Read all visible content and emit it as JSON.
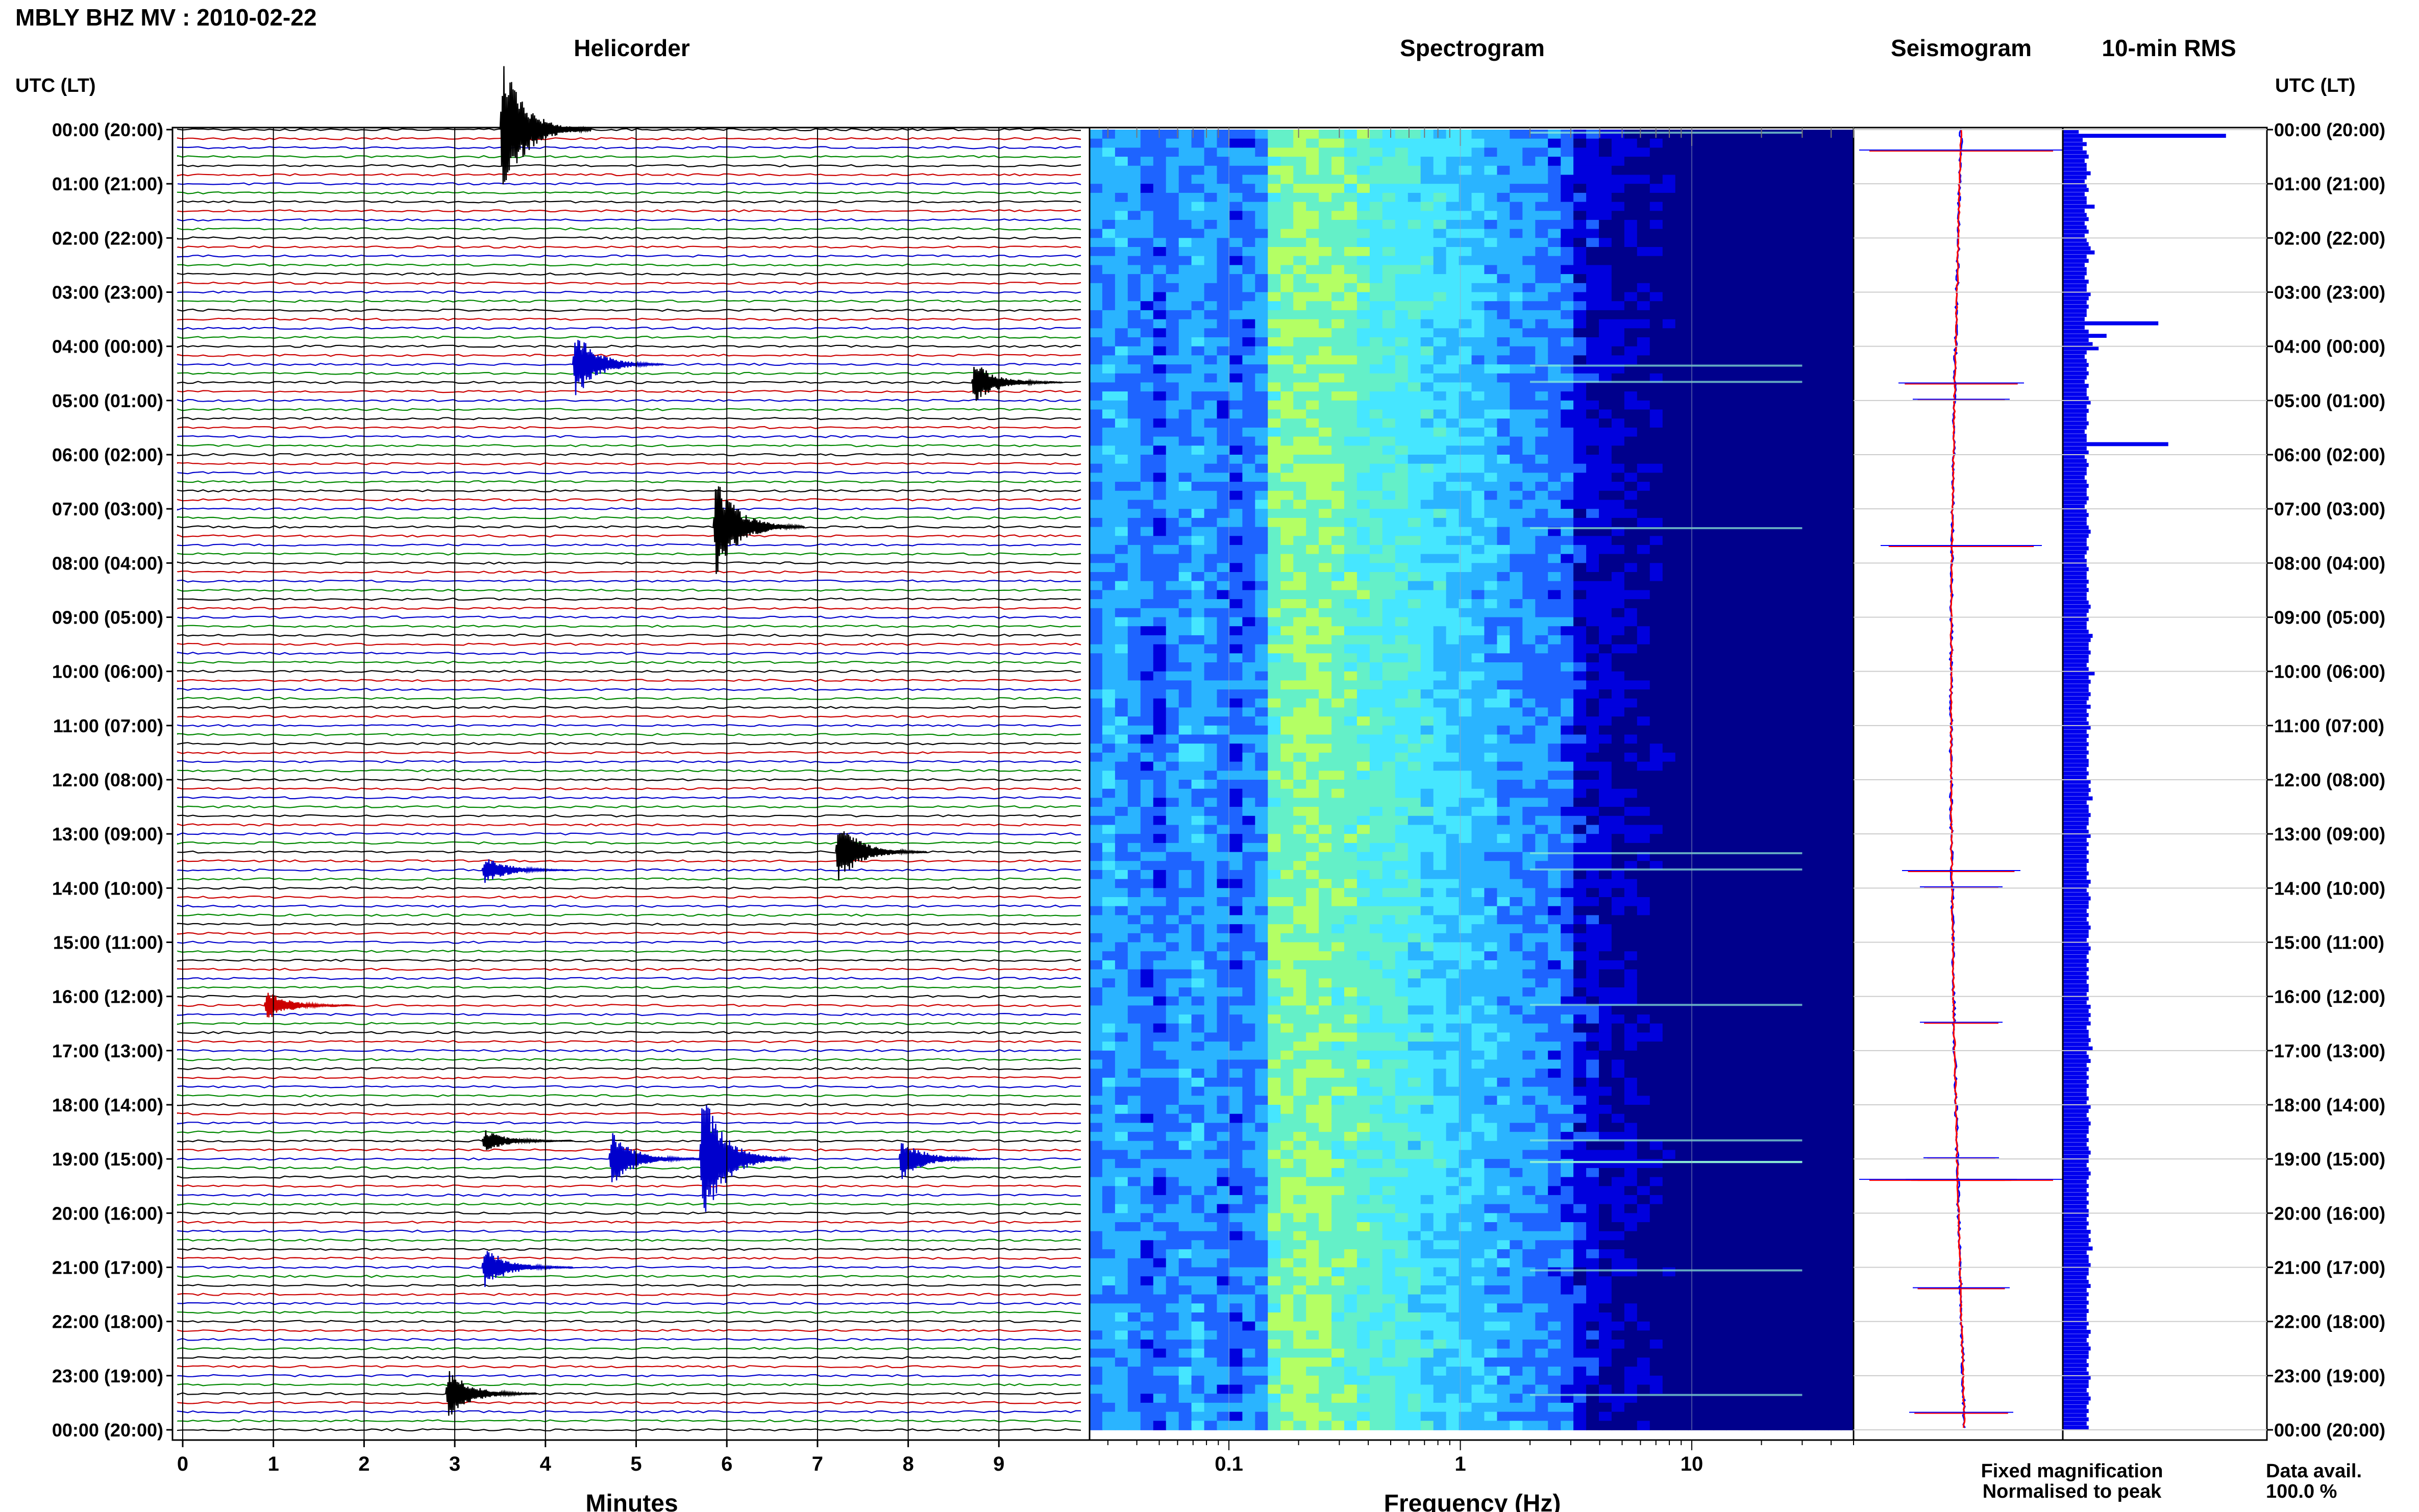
{
  "figure_title": "MBLY BHZ MV : 2010-02-22",
  "chart_data": [
    {
      "type": "line",
      "panel": "helicorder",
      "title": "Helicorder",
      "xlabel": "Minutes",
      "xlim": [
        0,
        10
      ],
      "xticks": [
        "0",
        "1",
        "2",
        "3",
        "4",
        "5",
        "6",
        "7",
        "8",
        "9"
      ],
      "time_label": "UTC (LT)",
      "time_ticks_left": [
        "00:00 (20:00)",
        "01:00 (21:00)",
        "02:00 (22:00)",
        "03:00 (23:00)",
        "04:00 (00:00)",
        "05:00 (01:00)",
        "06:00 (02:00)",
        "07:00 (03:00)",
        "08:00 (04:00)",
        "09:00 (05:00)",
        "10:00 (06:00)",
        "11:00 (07:00)",
        "12:00 (08:00)",
        "13:00 (09:00)",
        "14:00 (10:00)",
        "15:00 (11:00)",
        "16:00 (12:00)",
        "17:00 (13:00)",
        "18:00 (14:00)",
        "19:00 (15:00)",
        "20:00 (16:00)",
        "21:00 (17:00)",
        "22:00 (18:00)",
        "23:00 (19:00)",
        "00:00 (20:00)"
      ],
      "trace_colors": [
        "#000000",
        "#cc0000",
        "#0000cc",
        "#008800"
      ],
      "rows_per_hour": 6,
      "events": [
        {
          "hour": 0.0,
          "minute": 3.5,
          "amp": 1.0
        },
        {
          "hour": 4.3,
          "minute": 4.3,
          "amp": 0.45
        },
        {
          "hour": 4.6,
          "minute": 8.7,
          "amp": 0.25
        },
        {
          "hour": 7.3,
          "minute": 5.85,
          "amp": 0.7
        },
        {
          "hour": 13.3,
          "minute": 7.2,
          "amp": 0.4
        },
        {
          "hour": 13.6,
          "minute": 3.3,
          "amp": 0.15
        },
        {
          "hour": 16.1,
          "minute": 0.9,
          "amp": 0.15
        },
        {
          "hour": 18.6,
          "minute": 3.3,
          "amp": 0.1
        },
        {
          "hour": 19.0,
          "minute": 5.7,
          "amp": 1.0
        },
        {
          "hour": 19.0,
          "minute": 4.7,
          "amp": 0.35
        },
        {
          "hour": 19.0,
          "minute": 7.9,
          "amp": 0.25
        },
        {
          "hour": 21.0,
          "minute": 3.3,
          "amp": 0.25
        },
        {
          "hour": 23.3,
          "minute": 2.9,
          "amp": 0.3
        }
      ]
    },
    {
      "type": "heatmap",
      "panel": "spectrogram",
      "title": "Spectrogram",
      "xlabel": "Frequency (Hz)",
      "xscale": "log",
      "xlim": [
        0.025,
        50
      ],
      "xticks": [
        {
          "label": "0.1",
          "value": 0.1
        },
        {
          "label": "1",
          "value": 1
        },
        {
          "label": "10",
          "value": 10
        }
      ],
      "colormap": [
        "#00008c",
        "#0000dd",
        "#1e64ff",
        "#2ab4ff",
        "#46e6ff",
        "#64f0c8",
        "#b4ff64"
      ]
    },
    {
      "type": "line",
      "panel": "seismogram",
      "title": "Seismogram",
      "series": [
        {
          "name": "Fixed magnification",
          "color": "#0000ff"
        },
        {
          "name": "Normalised to peak",
          "color": "#ff0000"
        }
      ]
    },
    {
      "type": "bar",
      "panel": "rms",
      "title": "10-min RMS",
      "orientation": "horizontal",
      "color": "#0000ee",
      "time_label": "UTC (LT)",
      "time_ticks_right": [
        "00:00 (20:00)",
        "01:00 (21:00)",
        "02:00 (22:00)",
        "03:00 (23:00)",
        "04:00 (00:00)",
        "05:00 (01:00)",
        "06:00 (02:00)",
        "07:00 (03:00)",
        "08:00 (04:00)",
        "09:00 (05:00)",
        "10:00 (06:00)",
        "11:00 (07:00)",
        "12:00 (08:00)",
        "13:00 (09:00)",
        "14:00 (10:00)",
        "15:00 (11:00)",
        "16:00 (12:00)",
        "17:00 (13:00)",
        "18:00 (14:00)",
        "19:00 (15:00)",
        "20:00 (16:00)",
        "21:00 (17:00)",
        "22:00 (18:00)",
        "23:00 (19:00)",
        "00:00 (20:00)"
      ],
      "values": [
        0.08,
        0.82,
        0.1,
        0.12,
        0.1,
        0.12,
        0.13,
        0.11,
        0.12,
        0.12,
        0.14,
        0.12,
        0.11,
        0.12,
        0.13,
        0.11,
        0.12,
        0.12,
        0.16,
        0.11,
        0.12,
        0.13,
        0.11,
        0.12,
        0.13,
        0.11,
        0.12,
        0.13,
        0.14,
        0.16,
        0.12,
        0.13,
        0.11,
        0.12,
        0.12,
        0.11,
        0.13,
        0.12,
        0.12,
        0.14,
        0.13,
        0.12,
        0.13,
        0.12,
        0.12,
        0.11,
        0.48,
        0.11,
        0.13,
        0.22,
        0.13,
        0.15,
        0.18,
        0.12,
        0.11,
        0.12,
        0.13,
        0.12,
        0.13,
        0.12,
        0.11,
        0.13,
        0.12,
        0.12,
        0.13,
        0.14,
        0.12,
        0.13,
        0.12,
        0.12,
        0.13,
        0.12,
        0.11,
        0.12,
        0.12,
        0.53,
        0.12,
        0.13,
        0.11,
        0.12,
        0.13,
        0.12,
        0.12,
        0.11,
        0.12,
        0.13,
        0.12,
        0.12,
        0.13,
        0.12,
        0.11,
        0.12,
        0.13,
        0.12,
        0.12,
        0.13,
        0.14,
        0.13,
        0.12,
        0.12,
        0.13,
        0.12,
        0.11,
        0.12,
        0.12,
        0.13,
        0.12,
        0.12,
        0.13,
        0.12,
        0.13,
        0.12,
        0.12,
        0.13,
        0.14,
        0.13,
        0.12,
        0.13,
        0.12,
        0.12,
        0.13,
        0.15,
        0.14,
        0.13,
        0.13,
        0.14,
        0.13,
        0.13,
        0.12,
        0.13,
        0.16,
        0.13,
        0.14,
        0.13,
        0.13,
        0.14,
        0.13,
        0.12,
        0.14,
        0.12,
        0.13,
        0.12,
        0.13,
        0.14,
        0.12,
        0.13,
        0.12,
        0.13,
        0.12,
        0.13,
        0.12,
        0.13,
        0.13,
        0.12,
        0.13,
        0.12,
        0.14,
        0.13,
        0.14,
        0.13,
        0.15,
        0.12,
        0.13,
        0.13,
        0.14,
        0.13,
        0.13,
        0.12,
        0.13,
        0.14,
        0.12,
        0.13,
        0.12,
        0.13,
        0.12,
        0.13,
        0.12,
        0.12,
        0.13,
        0.12,
        0.14,
        0.13,
        0.12,
        0.13,
        0.14,
        0.13,
        0.13,
        0.12,
        0.13,
        0.12,
        0.13,
        0.14,
        0.13,
        0.13,
        0.12,
        0.13,
        0.14,
        0.13,
        0.12,
        0.13,
        0.12,
        0.13,
        0.12,
        0.13,
        0.12,
        0.13,
        0.13,
        0.12,
        0.13,
        0.12,
        0.14,
        0.13,
        0.14,
        0.13,
        0.14,
        0.12,
        0.13,
        0.13,
        0.14,
        0.13,
        0.15,
        0.12,
        0.13,
        0.14,
        0.12,
        0.13,
        0.12,
        0.13,
        0.12,
        0.13,
        0.12,
        0.12,
        0.13,
        0.12,
        0.14,
        0.13,
        0.12,
        0.13,
        0.14,
        0.13,
        0.13,
        0.12,
        0.13,
        0.12,
        0.13,
        0.14,
        0.13,
        0.13,
        0.12,
        0.13,
        0.14,
        0.13,
        0.12,
        0.13,
        0.12,
        0.13,
        0.12,
        0.13,
        0.12,
        0.13,
        0.13,
        0.12,
        0.13,
        0.12,
        0.14,
        0.13,
        0.14,
        0.13,
        0.15,
        0.12,
        0.13,
        0.13,
        0.14,
        0.13,
        0.13,
        0.12,
        0.13,
        0.14,
        0.12,
        0.13,
        0.12,
        0.13,
        0.12,
        0.13,
        0.12,
        0.12,
        0.13,
        0.12,
        0.14,
        0.13,
        0.12,
        0.13,
        0.14,
        0.13,
        0.13,
        0.12,
        0.13,
        0.12,
        0.13,
        0.14,
        0.13,
        0.13,
        0.12,
        0.13,
        0.14,
        0.13,
        0.12,
        0.13,
        0.12,
        0.13,
        0.12,
        0.13
      ]
    }
  ],
  "legend": {
    "fixed": "Fixed magnification",
    "normalised": "Normalised to peak",
    "fixed_color": "#0000ff",
    "normalised_color": "#ff0000"
  },
  "data_availability": {
    "label": "Data avail.",
    "value": "100.0 %"
  }
}
